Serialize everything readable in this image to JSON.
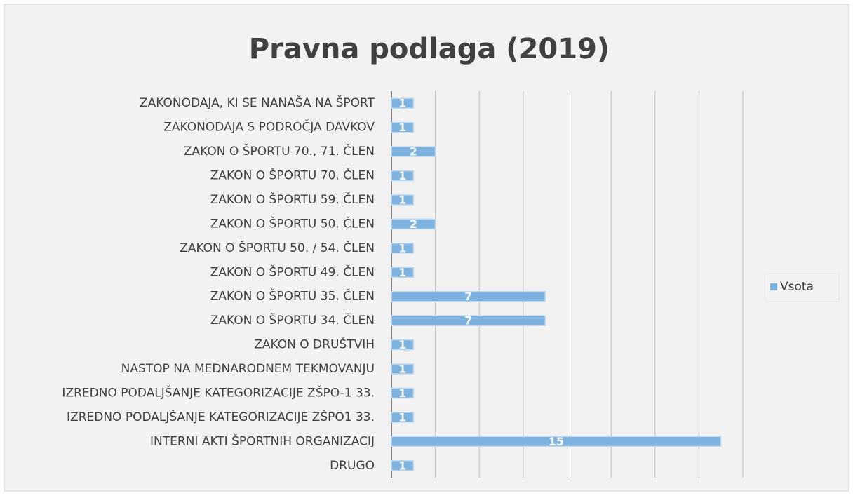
{
  "chart_data": {
    "type": "bar",
    "orientation": "horizontal",
    "title": "Pravna podlaga (2019)",
    "categories": [
      "ZAKONODAJA, KI SE NANAŠA NA ŠPORT",
      "ZAKONODAJA S PODROČJA DAVKOV",
      "ZAKON O ŠPORTU 70., 71. ČLEN",
      "ZAKON O ŠPORTU 70. ČLEN",
      "ZAKON O ŠPORTU 59. ČLEN",
      "ZAKON O ŠPORTU 50. ČLEN",
      "ZAKON O ŠPORTU 50. / 54. ČLEN",
      "ZAKON O ŠPORTU 49. ČLEN",
      "ZAKON O ŠPORTU 35. ČLEN",
      "ZAKON O ŠPORTU 34. ČLEN",
      "ZAKON O DRUŠTVIH",
      "NASTOP NA MEDNARODNEM TEKMOVANJU",
      "IZREDNO PODALJŠANJE KATEGORIZACIJE ZŠPO-1 33.",
      "IZREDNO PODALJŠANJE KATEGORIZACIJE ZŠPO1 33.",
      "INTERNI AKTI ŠPORTNIH ORGANIZACIJ",
      "DRUGO"
    ],
    "series": [
      {
        "name": "Vsota",
        "color": "#7eb3e0",
        "values": [
          1,
          1,
          2,
          1,
          1,
          2,
          1,
          1,
          7,
          7,
          1,
          1,
          1,
          1,
          15,
          1
        ]
      }
    ],
    "xlim": [
      0,
      16
    ],
    "xticks": [
      0,
      2,
      4,
      6,
      8,
      10,
      12,
      14,
      16
    ],
    "grid": true,
    "legend": "right"
  }
}
